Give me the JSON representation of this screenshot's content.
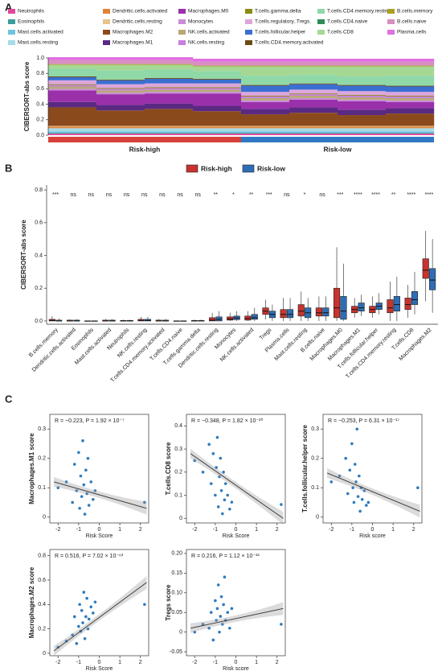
{
  "panels": [
    "A",
    "B",
    "C"
  ],
  "chart_data": [
    {
      "type": "stacked_bar",
      "ylabel": "CIBERSORT-abs score",
      "ylim": [
        0,
        1
      ],
      "yticks": [
        {
          "value": 0,
          "label": "0.0"
        },
        0.2,
        0.4,
        0.6,
        0.8,
        {
          "value": 1,
          "label": "1.0"
        }
      ],
      "categories": [
        null,
        null,
        null,
        null,
        null,
        null,
        null,
        null
      ],
      "groups": [
        {
          "name": "Risk-high",
          "color": "#d8403a",
          "size": 4
        },
        {
          "name": "Risk-low",
          "color": "#2f78c4",
          "size": 4
        }
      ],
      "series": [
        {
          "name": "Neutrophils",
          "color": "#e0489a",
          "values": [
            0.02,
            0.02,
            0.02,
            0.02,
            0.02,
            0.02,
            0.02,
            0.02
          ]
        },
        {
          "name": "Eosinophils",
          "color": "#3a9c9c",
          "values": [
            0.01,
            0.01,
            0.01,
            0.01,
            0.01,
            0.01,
            0.01,
            0.01
          ]
        },
        {
          "name": "Mast.cells.activated",
          "color": "#6fc3df",
          "values": [
            0.02,
            0.02,
            0.02,
            0.02,
            0.02,
            0.02,
            0.02,
            0.02
          ]
        },
        {
          "name": "Mast.cells.resting",
          "color": "#a8dbe8",
          "values": [
            0.04,
            0.04,
            0.04,
            0.04,
            0.04,
            0.04,
            0.04,
            0.04
          ]
        },
        {
          "name": "Dendritic.cells.activated",
          "color": "#e0833a",
          "values": [
            0.02,
            0.02,
            0.02,
            0.02,
            0.02,
            0.02,
            0.02,
            0.02
          ]
        },
        {
          "name": "Dendritic.cells.resting",
          "color": "#e6c48c",
          "values": [
            0.01,
            0.01,
            0.01,
            0.01,
            0.01,
            0.01,
            0.01,
            0.01
          ]
        },
        {
          "name": "Macrophages.M2",
          "color": "#8b4a1c",
          "values": [
            0.24,
            0.2,
            0.22,
            0.19,
            0.15,
            0.17,
            0.14,
            0.16
          ]
        },
        {
          "name": "Macrophages.M1",
          "color": "#5a2a82",
          "values": [
            0.07,
            0.07,
            0.07,
            0.07,
            0.07,
            0.07,
            0.07,
            0.07
          ]
        },
        {
          "name": "Macrophages.M0",
          "color": "#9b30ab",
          "values": [
            0.15,
            0.14,
            0.13,
            0.16,
            0.09,
            0.1,
            0.11,
            0.08
          ]
        },
        {
          "name": "Monocytes",
          "color": "#c98bd8",
          "values": [
            0.02,
            0.02,
            0.02,
            0.02,
            0.02,
            0.02,
            0.02,
            0.02
          ]
        },
        {
          "name": "NK.cells.activated",
          "color": "#b8a878",
          "values": [
            0.03,
            0.03,
            0.03,
            0.03,
            0.03,
            0.03,
            0.03,
            0.03
          ]
        },
        {
          "name": "NK.cells.resting",
          "color": "#c77fdc",
          "values": [
            0.02,
            0.02,
            0.02,
            0.02,
            0.02,
            0.02,
            0.02,
            0.02
          ]
        },
        {
          "name": "T.cells.gamma.delta",
          "color": "#8b8b10",
          "values": [
            0.01,
            0.01,
            0.01,
            0.01,
            0.01,
            0.01,
            0.01,
            0.01
          ]
        },
        {
          "name": "T.cells.regulatory..Tregs.",
          "color": "#dca6dc",
          "values": [
            0.05,
            0.05,
            0.05,
            0.05,
            0.05,
            0.05,
            0.05,
            0.05
          ]
        },
        {
          "name": "T.cells.follicular.helper",
          "color": "#3a6fd1",
          "values": [
            0.04,
            0.05,
            0.06,
            0.05,
            0.08,
            0.07,
            0.07,
            0.07
          ]
        },
        {
          "name": "T.cells.CD4.memory.activated",
          "color": "#6b4a12",
          "values": [
            0.01,
            0.01,
            0.01,
            0.01,
            0.01,
            0.01,
            0.01,
            0.01
          ]
        },
        {
          "name": "T.cells.CD4.memory.resting",
          "color": "#8fd8a8",
          "values": [
            0.1,
            0.12,
            0.11,
            0.1,
            0.12,
            0.11,
            0.11,
            0.13
          ]
        },
        {
          "name": "T.cells.CD4.naive",
          "color": "#2e8b57",
          "values": [
            0,
            0,
            0,
            0,
            0,
            0,
            0,
            0
          ]
        },
        {
          "name": "T.cells.CD8",
          "color": "#a6d894",
          "values": [
            0.05,
            0.07,
            0.06,
            0.06,
            0.12,
            0.11,
            0.13,
            0.12
          ]
        },
        {
          "name": "B.cells.memory",
          "color": "#a8a020",
          "values": [
            0.01,
            0.01,
            0.01,
            0.01,
            0.01,
            0.01,
            0.01,
            0.01
          ]
        },
        {
          "name": "B.cells.naive",
          "color": "#d890c0",
          "values": [
            0.05,
            0.05,
            0.05,
            0.05,
            0.05,
            0.05,
            0.05,
            0.05
          ]
        },
        {
          "name": "Plasma.cells",
          "color": "#e070e0",
          "values": [
            0.04,
            0.04,
            0.04,
            0.04,
            0.04,
            0.04,
            0.04,
            0.04
          ]
        }
      ]
    },
    {
      "type": "boxplot",
      "ylabel": "CIBERSORT-abs score",
      "ylim": [
        -0.02,
        0.83
      ],
      "yticks": [
        {
          "value": 0,
          "label": "0.0"
        },
        0.2,
        0.4,
        0.6,
        0.8
      ],
      "categories": [
        "B.cells.memory",
        "Dendritic.cells.activated",
        "Eosinophils",
        "Mast.cells.activated",
        "Neutrophils",
        "NK.cells.resting",
        "T.cells.CD4.memory.activated",
        "T.cells.CD4.naive",
        "T.cells.gamma.delta",
        "Dendritic.cells.resting",
        "Monocytes",
        "NK.cells.activated",
        "Tregs",
        "Plasma.cells",
        "Mast.cells.resting",
        "B.cells.naive",
        "Macrophages.M0",
        "Macrophages.M1",
        "T.cells.follicular.helper",
        "T.cells.CD4.memory.resting",
        "T.cells.CD8",
        "Macrophages.M2"
      ],
      "annotations": [
        "***",
        "ns",
        "ns",
        "ns",
        "ns",
        "ns",
        "ns",
        "ns",
        "ns",
        "**",
        "*",
        "**",
        "***",
        "ns",
        "*",
        "ns",
        "***",
        "****",
        "****",
        "**",
        "****",
        "****"
      ],
      "series": [
        {
          "name": "Risk-high",
          "color": "#c8332f",
          "values": [
            [
              0,
              0,
              0.003,
              0.01,
              0.03
            ],
            [
              0,
              0,
              0,
              0.005,
              0.01
            ],
            [
              0,
              0,
              0,
              0,
              0
            ],
            [
              0,
              0,
              0,
              0.005,
              0.012
            ],
            [
              0,
              0,
              0,
              0.003,
              0.008
            ],
            [
              0,
              0,
              0.003,
              0.01,
              0.025
            ],
            [
              0,
              0,
              0,
              0.005,
              0.012
            ],
            [
              0,
              0,
              0,
              0,
              0.002
            ],
            [
              0,
              0,
              0,
              0.003,
              0.008
            ],
            [
              0,
              0,
              0.005,
              0.02,
              0.05
            ],
            [
              0,
              0.005,
              0.012,
              0.025,
              0.05
            ],
            [
              0,
              0.005,
              0.015,
              0.03,
              0.06
            ],
            [
              0.01,
              0.04,
              0.06,
              0.08,
              0.13
            ],
            [
              0,
              0.02,
              0.04,
              0.07,
              0.14
            ],
            [
              0,
              0.03,
              0.06,
              0.1,
              0.18
            ],
            [
              0,
              0.03,
              0.05,
              0.08,
              0.15
            ],
            [
              0,
              0.02,
              0.08,
              0.2,
              0.45
            ],
            [
              0.02,
              0.05,
              0.07,
              0.09,
              0.14
            ],
            [
              0.02,
              0.05,
              0.07,
              0.09,
              0.15
            ],
            [
              0,
              0.05,
              0.08,
              0.13,
              0.24
            ],
            [
              0.02,
              0.07,
              0.1,
              0.14,
              0.22
            ],
            [
              0.12,
              0.26,
              0.31,
              0.38,
              0.55
            ]
          ]
        },
        {
          "name": "Risk-low",
          "color": "#2f6db5",
          "values": [
            [
              0,
              0,
              0,
              0.005,
              0.015
            ],
            [
              0,
              0,
              0,
              0.005,
              0.01
            ],
            [
              0,
              0,
              0,
              0,
              0
            ],
            [
              0,
              0,
              0,
              0.005,
              0.012
            ],
            [
              0,
              0,
              0,
              0.003,
              0.008
            ],
            [
              0,
              0,
              0.003,
              0.01,
              0.025
            ],
            [
              0,
              0,
              0,
              0.005,
              0.012
            ],
            [
              0,
              0,
              0,
              0,
              0.002
            ],
            [
              0,
              0,
              0,
              0.003,
              0.008
            ],
            [
              0,
              0,
              0.01,
              0.025,
              0.06
            ],
            [
              0,
              0.008,
              0.018,
              0.03,
              0.06
            ],
            [
              0,
              0.01,
              0.02,
              0.04,
              0.08
            ],
            [
              0,
              0.02,
              0.04,
              0.06,
              0.1
            ],
            [
              0,
              0.02,
              0.04,
              0.07,
              0.14
            ],
            [
              0,
              0.02,
              0.05,
              0.08,
              0.14
            ],
            [
              0,
              0.03,
              0.05,
              0.08,
              0.15
            ],
            [
              0,
              0.01,
              0.06,
              0.15,
              0.35
            ],
            [
              0.03,
              0.06,
              0.08,
              0.11,
              0.16
            ],
            [
              0.04,
              0.07,
              0.09,
              0.11,
              0.17
            ],
            [
              0,
              0.06,
              0.1,
              0.15,
              0.27
            ],
            [
              0.04,
              0.1,
              0.13,
              0.18,
              0.3
            ],
            [
              0.05,
              0.19,
              0.25,
              0.32,
              0.5
            ]
          ]
        }
      ]
    },
    {
      "type": "scatter",
      "title": "R = −0.223, P = 1.92 × 10⁻⁷",
      "xlabel": "Risk Score",
      "ylabel": "Macrophages.M1 score",
      "color": "#2f7bbf",
      "xlim": [
        -2.4,
        2.4
      ],
      "xticks": [
        -2,
        -1,
        0,
        1,
        2
      ],
      "ylim": [
        -0.02,
        0.35
      ],
      "yticks": [
        0,
        0.1,
        0.2,
        0.3
      ],
      "x": [
        -2.0,
        -1.6,
        -1.3,
        -1.2,
        -1.1,
        -1.0,
        -0.95,
        -0.9,
        -0.85,
        -0.8,
        -0.75,
        -0.7,
        -0.65,
        -0.6,
        -0.55,
        -0.5,
        -0.4,
        -0.3,
        -0.2,
        2.2
      ],
      "y": [
        0.1,
        0.12,
        0.05,
        0.18,
        0.09,
        0.22,
        0.03,
        0.14,
        0.07,
        0.26,
        0.11,
        0.01,
        0.16,
        0.08,
        0.2,
        0.04,
        0.12,
        0.06,
        0.09,
        0.05
      ],
      "fit": {
        "x": [
          -2.2,
          2.3
        ],
        "y": [
          0.12,
          0.03
        ]
      }
    },
    {
      "type": "scatter",
      "title": "R = −0.348, P = 1.82 × 10⁻²⁰",
      "xlabel": "Risk Score",
      "ylabel": "T.cells.CD8 score",
      "color": "#2f7bbf",
      "xlim": [
        -2.4,
        2.4
      ],
      "xticks": [
        -2,
        -1,
        0,
        1,
        2
      ],
      "ylim": [
        -0.02,
        0.45
      ],
      "yticks": [
        0,
        0.1,
        0.2,
        0.3,
        0.4
      ],
      "x": [
        -2.0,
        -1.6,
        -1.3,
        -1.2,
        -1.1,
        -1.0,
        -0.95,
        -0.9,
        -0.85,
        -0.8,
        -0.75,
        -0.7,
        -0.65,
        -0.6,
        -0.55,
        -0.5,
        -0.4,
        -0.3,
        -0.2,
        2.2
      ],
      "y": [
        0.25,
        0.2,
        0.32,
        0.15,
        0.28,
        0.1,
        0.22,
        0.35,
        0.05,
        0.18,
        0.26,
        0.12,
        0.02,
        0.2,
        0.08,
        0.15,
        0.1,
        0.04,
        0.07,
        0.06
      ],
      "fit": {
        "x": [
          -2.2,
          2.3
        ],
        "y": [
          0.28,
          0.0
        ]
      }
    },
    {
      "type": "scatter",
      "title": "R = −0.253, P = 6.31 × 10⁻¹⁷",
      "xlabel": "Risk score",
      "ylabel": "T.cells.follicular.helper score",
      "color": "#2f7bbf",
      "xlim": [
        -2.4,
        2.4
      ],
      "xticks": [
        -2,
        -1,
        0,
        1,
        2
      ],
      "ylim": [
        -0.02,
        0.35
      ],
      "yticks": [
        0,
        0.1,
        0.2,
        0.3
      ],
      "x": [
        -2.0,
        -1.6,
        -1.3,
        -1.2,
        -1.1,
        -1.0,
        -0.95,
        -0.9,
        -0.85,
        -0.8,
        -0.75,
        -0.7,
        -0.65,
        -0.6,
        -0.55,
        -0.5,
        -0.4,
        -0.3,
        -0.2,
        2.2
      ],
      "y": [
        0.12,
        0.14,
        0.2,
        0.08,
        0.16,
        0.25,
        0.1,
        0.05,
        0.18,
        0.12,
        0.3,
        0.07,
        0.14,
        0.02,
        0.1,
        0.06,
        0.09,
        0.04,
        0.05,
        0.1
      ],
      "fit": {
        "x": [
          -2.2,
          2.3
        ],
        "y": [
          0.15,
          0.02
        ]
      }
    },
    {
      "type": "scatter",
      "title": "R = 0.516, P = 7.02 × 10⁻⁶³",
      "xlabel": "Risk Score",
      "ylabel": "Macrophages.M2 score",
      "color": "#2f7bbf",
      "xlim": [
        -2.4,
        2.4
      ],
      "xticks": [
        -2,
        -1,
        0,
        1,
        2
      ],
      "ylim": [
        -0.02,
        0.85
      ],
      "yticks": [
        0,
        0.2,
        0.4,
        0.6,
        0.8
      ],
      "x": [
        -2.0,
        -1.6,
        -1.3,
        -1.2,
        -1.1,
        -1.0,
        -0.95,
        -0.9,
        -0.85,
        -0.8,
        -0.75,
        -0.7,
        -0.65,
        -0.6,
        -0.55,
        -0.5,
        -0.4,
        -0.3,
        -0.2,
        2.2
      ],
      "y": [
        0.05,
        0.1,
        0.15,
        0.3,
        0.08,
        0.22,
        0.4,
        0.18,
        0.35,
        0.25,
        0.5,
        0.12,
        0.3,
        0.45,
        0.2,
        0.28,
        0.38,
        0.33,
        0.42,
        0.4
      ],
      "fit": {
        "x": [
          -2.2,
          2.3
        ],
        "y": [
          0.02,
          0.58
        ]
      }
    },
    {
      "type": "scatter",
      "title": "R = 0.216, P = 1.12 × 10⁻¹²",
      "xlabel": "Risk score",
      "ylabel": "Tregs score",
      "color": "#2f7bbf",
      "xlim": [
        -2.4,
        2.4
      ],
      "xticks": [
        -2,
        -1,
        0,
        1,
        2
      ],
      "ylim": [
        -0.06,
        0.21
      ],
      "yticks": [
        -0.05,
        0,
        0.05,
        {
          "value": 0.1,
          "label": "0.10"
        },
        0.15,
        {
          "value": 0.2,
          "label": "0.20"
        }
      ],
      "x": [
        -2.0,
        -1.6,
        -1.3,
        -1.2,
        -1.1,
        -1.0,
        -0.95,
        -0.9,
        -0.85,
        -0.8,
        -0.75,
        -0.7,
        -0.65,
        -0.6,
        -0.55,
        -0.5,
        -0.4,
        -0.3,
        -0.2,
        2.2
      ],
      "y": [
        0.0,
        0.02,
        0.01,
        0.05,
        -0.02,
        0.08,
        0.03,
        0.06,
        0.12,
        0.0,
        0.04,
        0.09,
        0.02,
        0.07,
        0.14,
        0.03,
        0.05,
        0.01,
        0.06,
        0.02
      ],
      "fit": {
        "x": [
          -2.2,
          2.3
        ],
        "y": [
          0.01,
          0.06
        ]
      }
    }
  ]
}
